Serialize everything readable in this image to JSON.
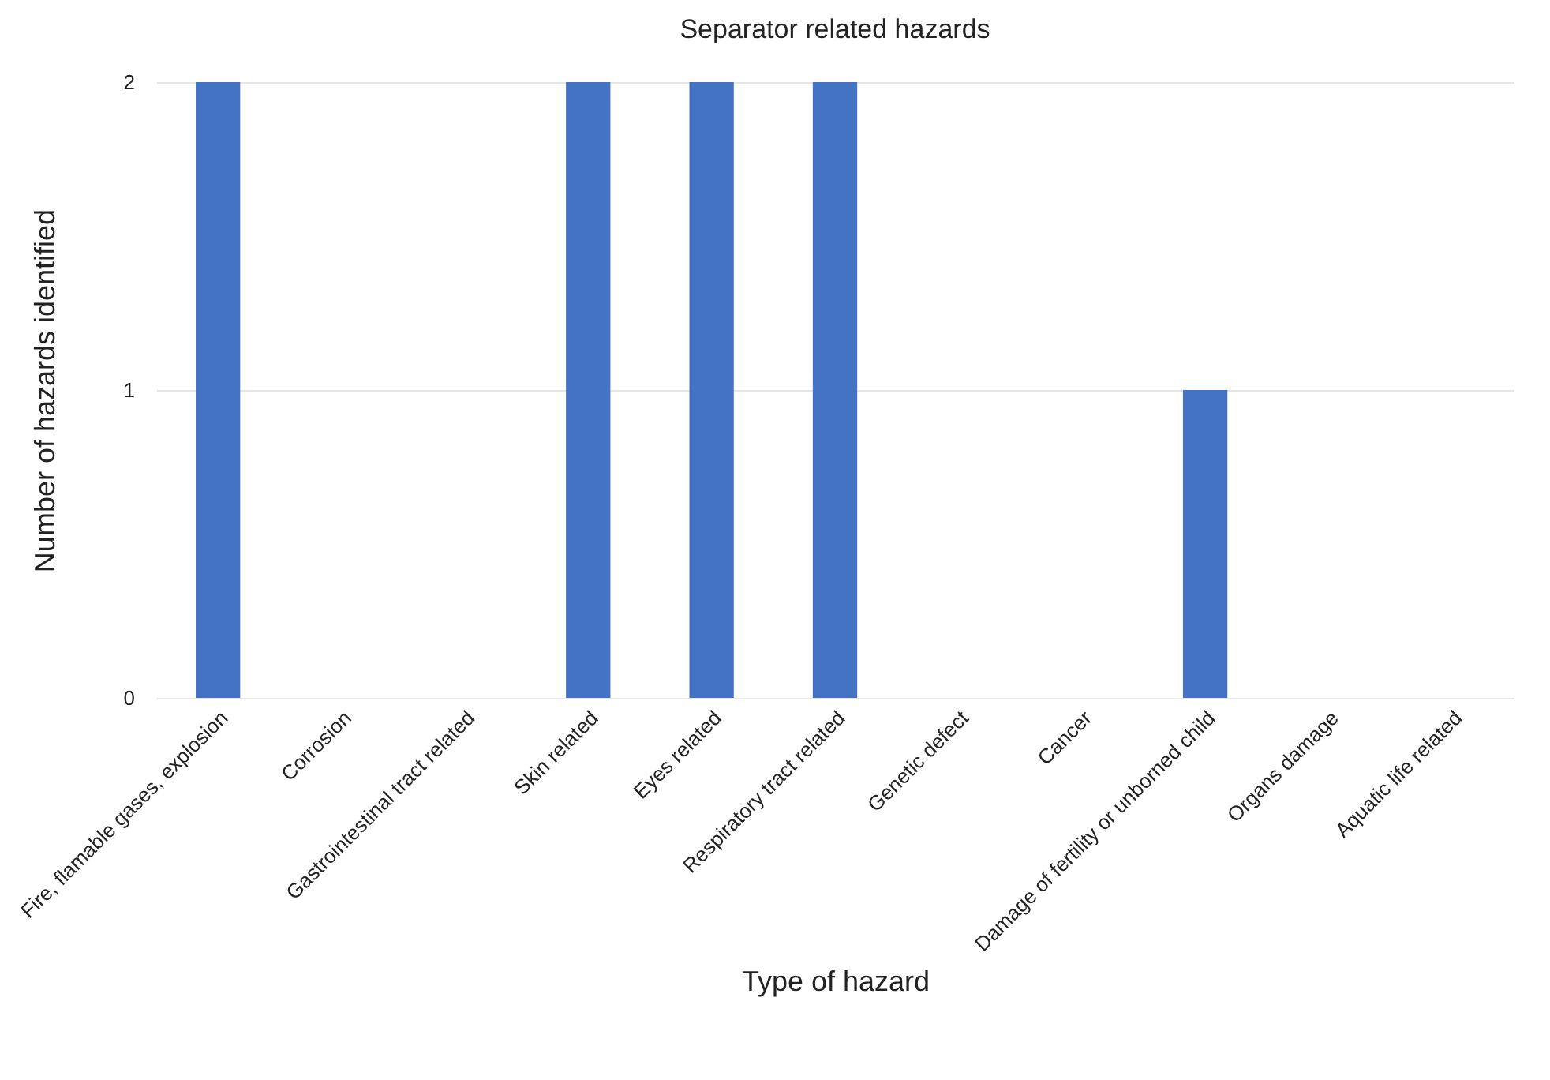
{
  "chart_data": {
    "type": "bar",
    "title": "Separator related hazards",
    "xlabel": "Type of hazard",
    "ylabel": "Number of hazards identified",
    "categories": [
      "Fire, flamable gases, explosion",
      "Corrosion",
      "Gastrointestinal tract related",
      "Skin related",
      "Eyes related",
      "Respiratory tract related",
      "Genetic defect",
      "Cancer",
      "Damage of fertility or unborned child",
      "Organs damage",
      "Aquatic life related"
    ],
    "values": [
      2,
      0,
      0,
      2,
      2,
      2,
      0,
      0,
      1,
      0,
      0
    ],
    "color": "#4472c4",
    "ylim": [
      0,
      2
    ],
    "yticks": [
      0,
      1,
      2
    ],
    "grid": "y"
  }
}
